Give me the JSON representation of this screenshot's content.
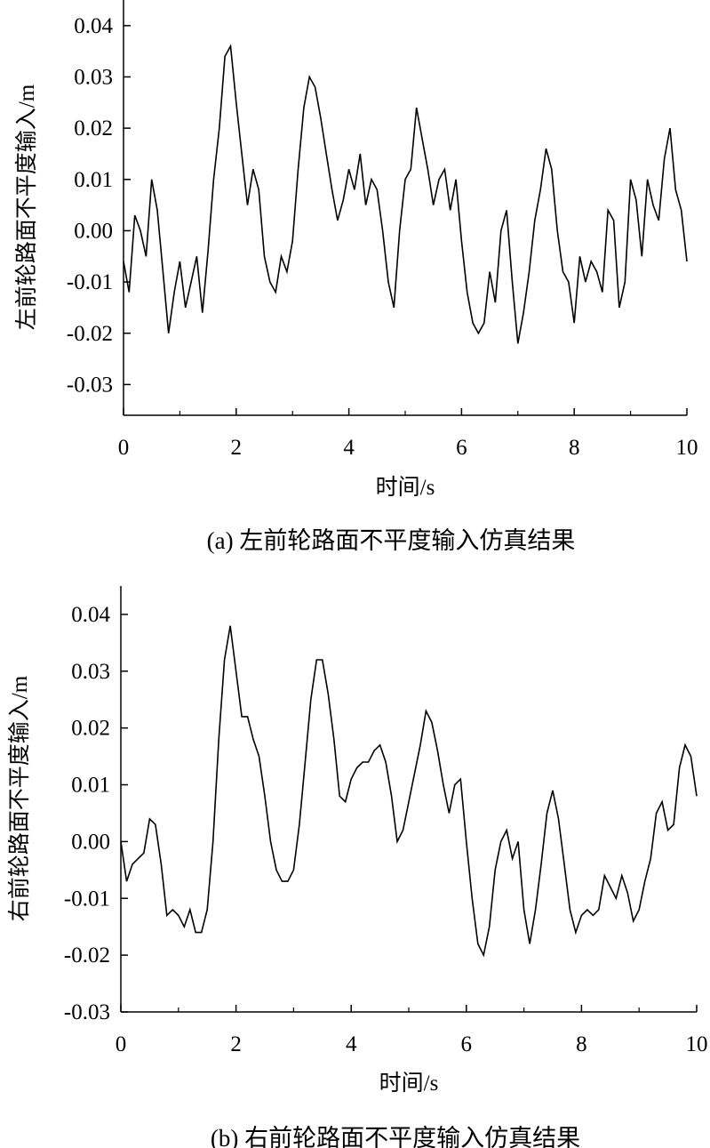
{
  "chart_data": [
    {
      "type": "line",
      "caption": "(a) 左前轮路面不平度输入仿真结果",
      "xlabel": "时间/s",
      "ylabel": "左前轮路面不平度输入/m",
      "xlim": [
        0,
        10
      ],
      "ylim": [
        -0.036,
        0.045
      ],
      "xticks": [
        0,
        2,
        4,
        6,
        8,
        10
      ],
      "xtick_labels": [
        "0",
        "2",
        "4",
        "6",
        "8",
        "10"
      ],
      "yticks": [
        0.04,
        0.03,
        0.02,
        0.01,
        0.0,
        -0.01,
        -0.02,
        -0.03
      ],
      "ytick_labels": [
        "0.04",
        "0.03",
        "0.02",
        "0.01",
        "0.00",
        "-0.01",
        "-0.02",
        "-0.03"
      ],
      "grid": false,
      "series": [
        {
          "x": [
            0,
            0.1,
            0.2,
            0.3,
            0.4,
            0.5,
            0.6,
            0.7,
            0.8,
            0.9,
            1.0,
            1.1,
            1.2,
            1.3,
            1.4,
            1.5,
            1.6,
            1.7,
            1.8,
            1.9,
            2.0,
            2.1,
            2.2,
            2.3,
            2.4,
            2.5,
            2.6,
            2.7,
            2.8,
            2.9,
            3.0,
            3.1,
            3.2,
            3.3,
            3.4,
            3.5,
            3.6,
            3.7,
            3.8,
            3.9,
            4.0,
            4.1,
            4.2,
            4.3,
            4.4,
            4.5,
            4.6,
            4.7,
            4.8,
            4.9,
            5.0,
            5.1,
            5.2,
            5.3,
            5.4,
            5.5,
            5.6,
            5.7,
            5.8,
            5.9,
            6.0,
            6.1,
            6.2,
            6.3,
            6.4,
            6.5,
            6.6,
            6.7,
            6.8,
            6.9,
            7.0,
            7.1,
            7.2,
            7.3,
            7.4,
            7.5,
            7.6,
            7.7,
            7.8,
            7.9,
            8.0,
            8.1,
            8.2,
            8.3,
            8.4,
            8.5,
            8.6,
            8.7,
            8.8,
            8.9,
            9.0,
            9.1,
            9.2,
            9.3,
            9.4,
            9.5,
            9.6,
            9.7,
            9.8,
            9.9,
            10.0
          ],
          "y": [
            -0.006,
            -0.012,
            0.003,
            0.0,
            -0.005,
            0.01,
            0.004,
            -0.008,
            -0.02,
            -0.012,
            -0.006,
            -0.015,
            -0.01,
            -0.005,
            -0.016,
            -0.004,
            0.01,
            0.02,
            0.034,
            0.036,
            0.025,
            0.015,
            0.005,
            0.012,
            0.008,
            -0.005,
            -0.01,
            -0.012,
            -0.005,
            -0.008,
            -0.002,
            0.012,
            0.024,
            0.03,
            0.028,
            0.022,
            0.015,
            0.008,
            0.002,
            0.006,
            0.012,
            0.008,
            0.015,
            0.005,
            0.01,
            0.008,
            0.0,
            -0.01,
            -0.015,
            0.0,
            0.01,
            0.012,
            0.024,
            0.018,
            0.012,
            0.005,
            0.01,
            0.012,
            0.004,
            0.01,
            -0.002,
            -0.012,
            -0.018,
            -0.02,
            -0.018,
            -0.008,
            -0.014,
            0.0,
            0.004,
            -0.01,
            -0.022,
            -0.016,
            -0.008,
            0.002,
            0.008,
            0.016,
            0.012,
            0.0,
            -0.008,
            -0.01,
            -0.018,
            -0.005,
            -0.01,
            -0.006,
            -0.008,
            -0.012,
            0.004,
            0.002,
            -0.015,
            -0.01,
            0.01,
            0.006,
            -0.005,
            0.01,
            0.005,
            0.002,
            0.014,
            0.02,
            0.008,
            0.004,
            -0.006
          ]
        }
      ]
    },
    {
      "type": "line",
      "caption": "(b) 右前轮路面不平度输入仿真结果",
      "xlabel": "时间/s",
      "ylabel": "右前轮路面不平度输入/m",
      "xlim": [
        0,
        10
      ],
      "ylim": [
        -0.03,
        0.045
      ],
      "xticks": [
        0,
        2,
        4,
        6,
        8,
        10
      ],
      "xtick_labels": [
        "0",
        "2",
        "4",
        "6",
        "8",
        "10"
      ],
      "yticks": [
        0.04,
        0.03,
        0.02,
        0.01,
        0.0,
        -0.01,
        -0.02,
        -0.03
      ],
      "ytick_labels": [
        "0.04",
        "0.03",
        "0.02",
        "0.01",
        "0.00",
        "-0.01",
        "-0.02",
        "-0.03"
      ],
      "grid": false,
      "series": [
        {
          "x": [
            0,
            0.1,
            0.2,
            0.3,
            0.4,
            0.5,
            0.6,
            0.7,
            0.8,
            0.9,
            1.0,
            1.1,
            1.2,
            1.3,
            1.4,
            1.5,
            1.6,
            1.7,
            1.8,
            1.9,
            2.0,
            2.1,
            2.2,
            2.3,
            2.4,
            2.5,
            2.6,
            2.7,
            2.8,
            2.9,
            3.0,
            3.1,
            3.2,
            3.3,
            3.4,
            3.5,
            3.6,
            3.7,
            3.8,
            3.9,
            4.0,
            4.1,
            4.2,
            4.3,
            4.4,
            4.5,
            4.6,
            4.7,
            4.8,
            4.9,
            5.0,
            5.1,
            5.2,
            5.3,
            5.4,
            5.5,
            5.6,
            5.7,
            5.8,
            5.9,
            6.0,
            6.1,
            6.2,
            6.3,
            6.4,
            6.5,
            6.6,
            6.7,
            6.8,
            6.9,
            7.0,
            7.1,
            7.2,
            7.3,
            7.4,
            7.5,
            7.6,
            7.7,
            7.8,
            7.9,
            8.0,
            8.1,
            8.2,
            8.3,
            8.4,
            8.5,
            8.6,
            8.7,
            8.8,
            8.9,
            9.0,
            9.1,
            9.2,
            9.3,
            9.4,
            9.5,
            9.6,
            9.7,
            9.8,
            9.9,
            10.0
          ],
          "y": [
            0.0,
            -0.007,
            -0.004,
            -0.003,
            -0.002,
            0.004,
            0.003,
            -0.004,
            -0.013,
            -0.012,
            -0.013,
            -0.015,
            -0.012,
            -0.016,
            -0.016,
            -0.012,
            0.0,
            0.018,
            0.032,
            0.038,
            0.03,
            0.022,
            0.022,
            0.018,
            0.015,
            0.008,
            0.0,
            -0.005,
            -0.007,
            -0.007,
            -0.005,
            0.003,
            0.014,
            0.025,
            0.032,
            0.032,
            0.026,
            0.018,
            0.008,
            0.007,
            0.011,
            0.013,
            0.014,
            0.014,
            0.016,
            0.017,
            0.014,
            0.008,
            0.0,
            0.002,
            0.007,
            0.012,
            0.017,
            0.023,
            0.021,
            0.016,
            0.01,
            0.005,
            0.01,
            0.011,
            0.0,
            -0.01,
            -0.018,
            -0.02,
            -0.015,
            -0.005,
            0.0,
            0.002,
            -0.003,
            0.0,
            -0.012,
            -0.018,
            -0.012,
            -0.004,
            0.005,
            0.009,
            0.004,
            -0.004,
            -0.012,
            -0.016,
            -0.013,
            -0.012,
            -0.013,
            -0.012,
            -0.006,
            -0.008,
            -0.01,
            -0.006,
            -0.009,
            -0.014,
            -0.012,
            -0.007,
            -0.003,
            0.005,
            0.007,
            0.002,
            0.003,
            0.013,
            0.017,
            0.015,
            0.008
          ]
        }
      ]
    }
  ]
}
